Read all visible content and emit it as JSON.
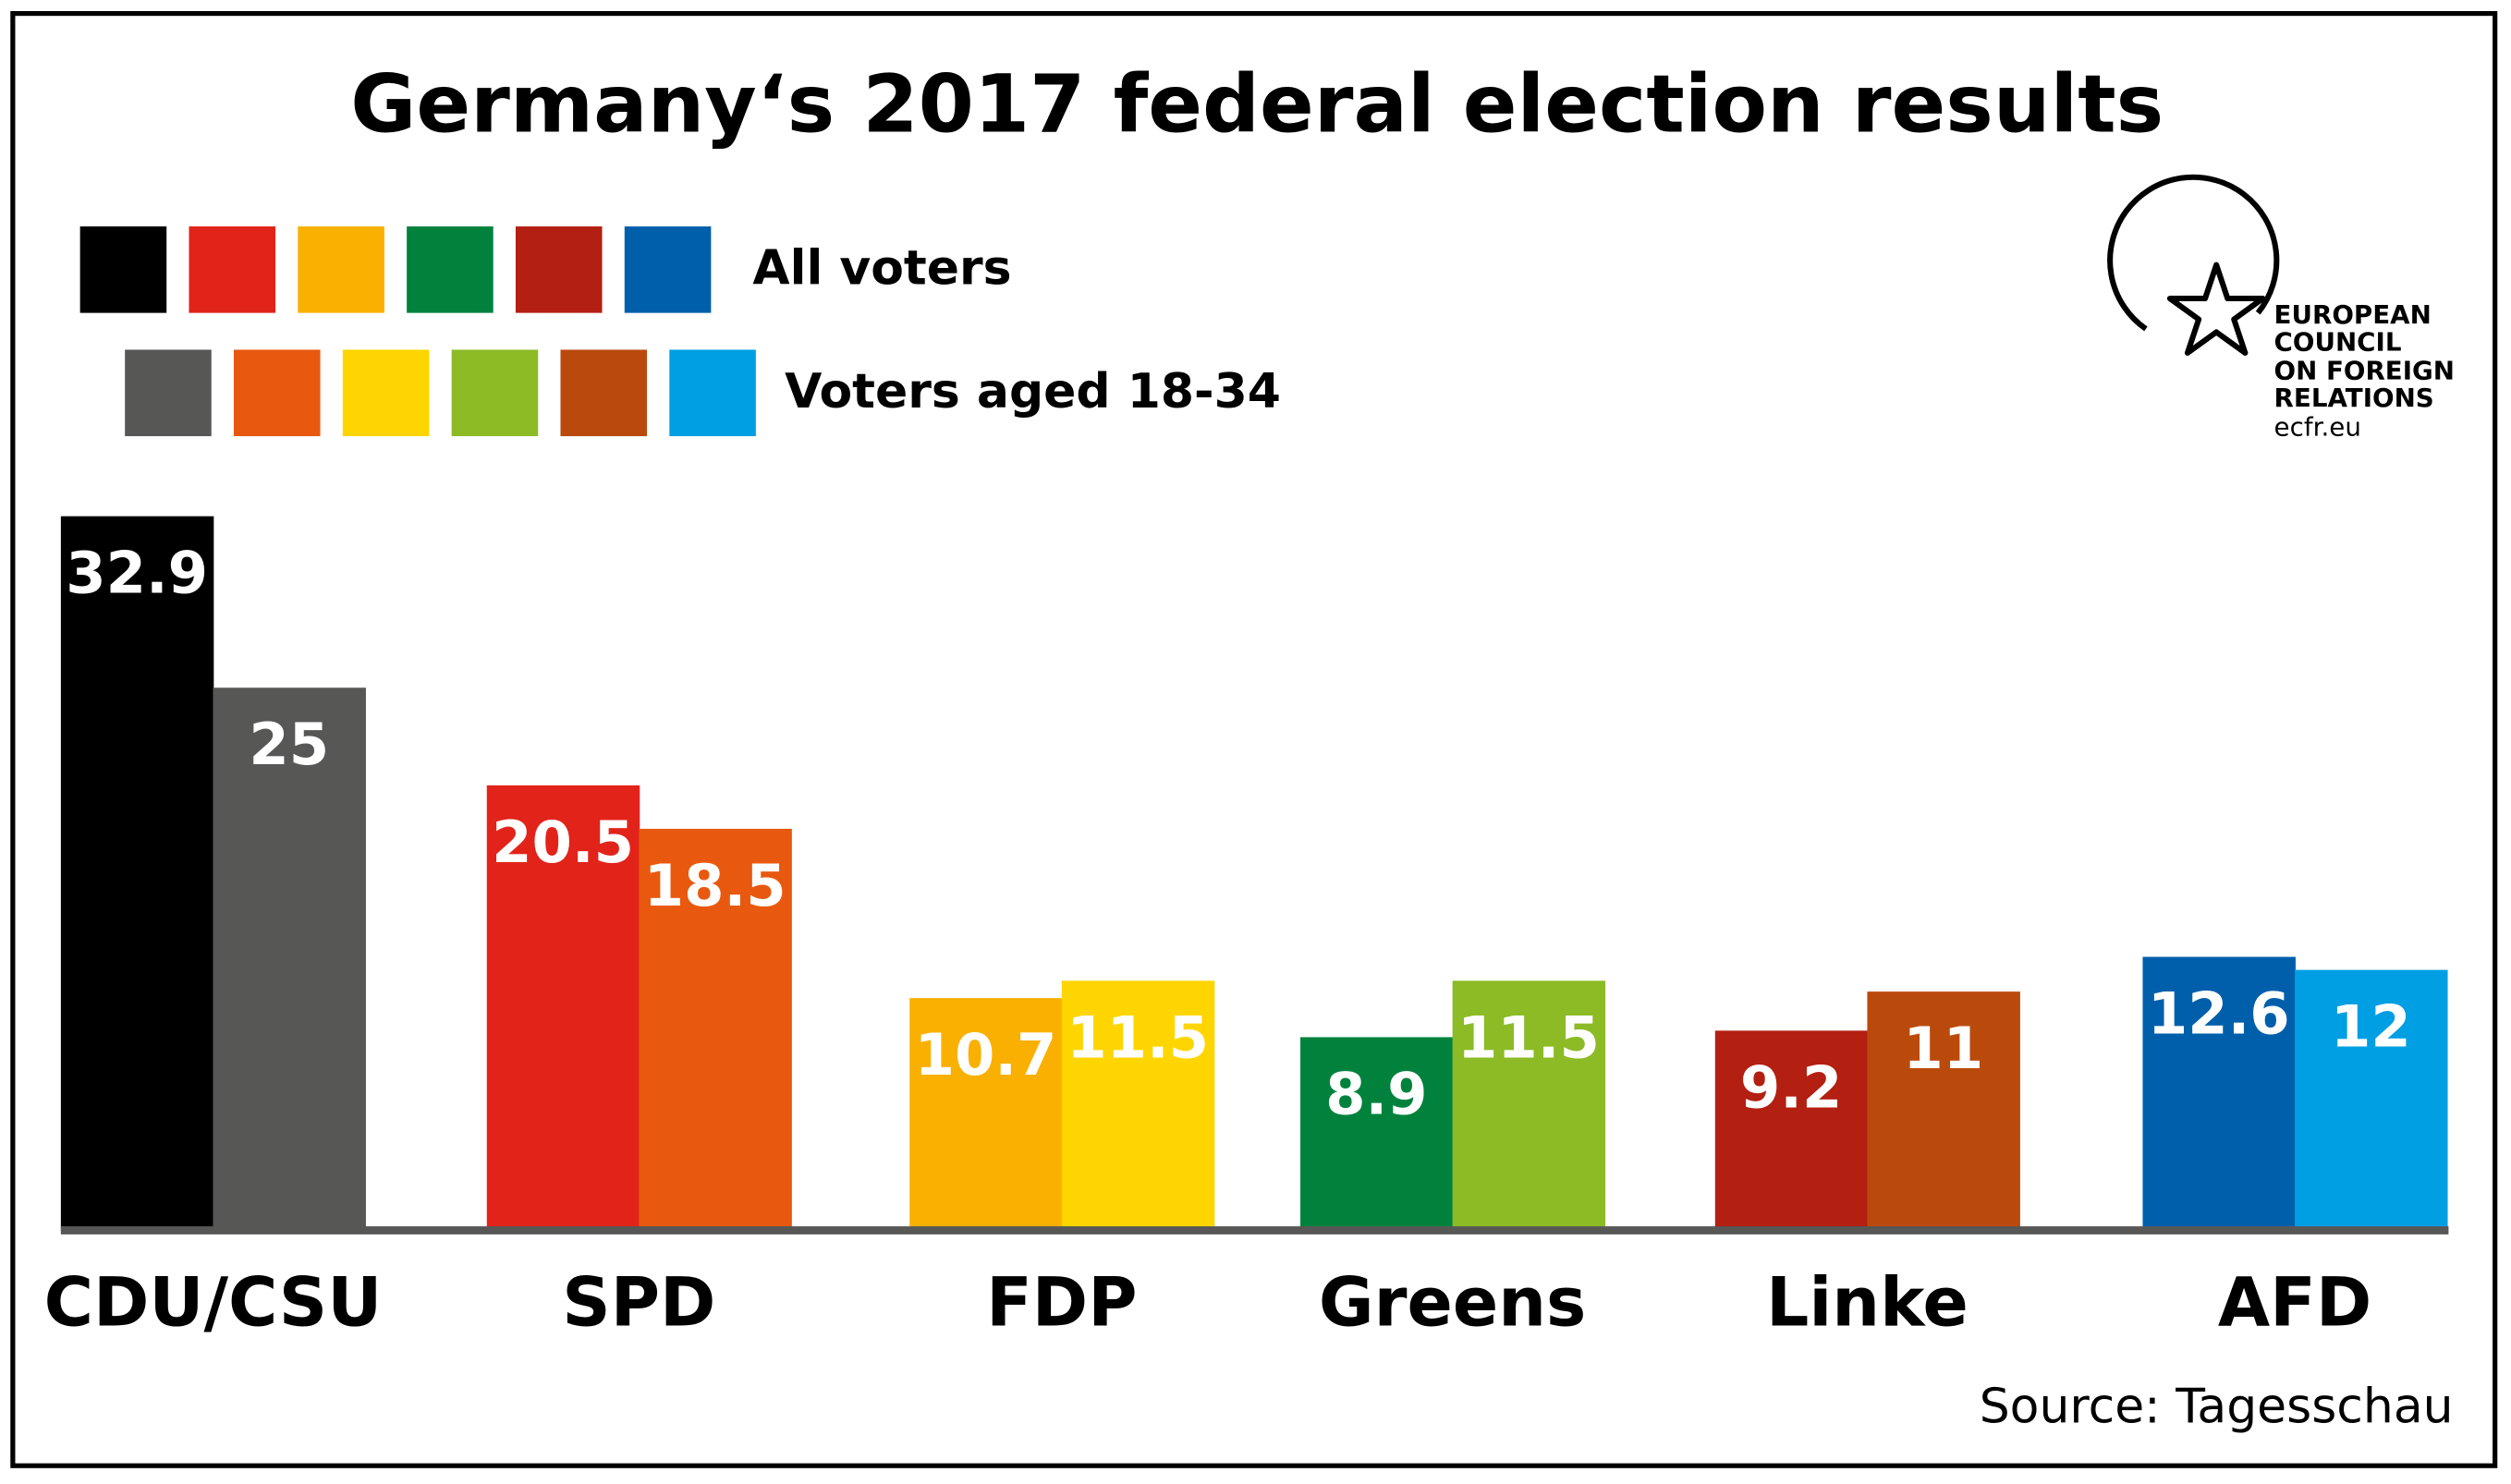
{
  "chart_data": {
    "type": "bar",
    "title": "Germany‘s 2017 federal election results",
    "categories": [
      "CDU/CSU",
      "SPD",
      "FDP",
      "Greens",
      "Linke",
      "AFD"
    ],
    "series": [
      {
        "name": "All voters",
        "colors": [
          "#000000",
          "#e2231a",
          "#f9b000",
          "#00823d",
          "#b31f11",
          "#005fab"
        ],
        "values": [
          32.9,
          20.5,
          10.7,
          8.9,
          9.2,
          12.6
        ]
      },
      {
        "name": "Voters aged 18-34",
        "colors": [
          "#575756",
          "#e8590f",
          "#ffd500",
          "#8cbb26",
          "#ba4a0c",
          "#009fe3"
        ],
        "values": [
          25,
          18.5,
          11.5,
          11.5,
          11,
          12
        ]
      }
    ],
    "source": "Source: Tagesschau"
  },
  "logo": {
    "lines": [
      "EUROPEAN",
      "COUNCIL",
      "ON FOREIGN",
      "RELATIONS"
    ],
    "url": "ecfr.eu"
  }
}
